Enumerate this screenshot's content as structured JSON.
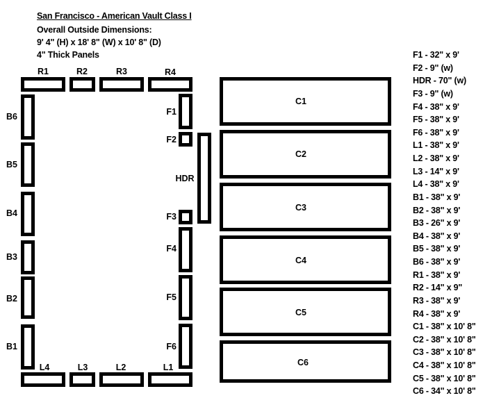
{
  "header": {
    "title": "San Francisco - American Vault Class I",
    "line2": "Overall Outside Dimensions:",
    "line3": "9' 4\" (H) x 18' 8\" (W) x 10' 8\" (D)",
    "line4": "4\" Thick Panels"
  },
  "panels": {
    "R1": "R1",
    "R2": "R2",
    "R3": "R3",
    "R4": "R4",
    "B1": "B1",
    "B2": "B2",
    "B3": "B3",
    "B4": "B4",
    "B5": "B5",
    "B6": "B6",
    "F1": "F1",
    "F2": "F2",
    "F3": "F3",
    "F4": "F4",
    "F5": "F5",
    "F6": "F6",
    "HDR": "HDR",
    "L1": "L1",
    "L2": "L2",
    "L3": "L3",
    "L4": "L4",
    "C1": "C1",
    "C2": "C2",
    "C3": "C3",
    "C4": "C4",
    "C5": "C5",
    "C6": "C6"
  },
  "dimensions": [
    "F1 - 32\" x 9'",
    "F2 - 9\" (w)",
    "HDR - 70\" (w)",
    "F3 - 9\" (w)",
    "F4 - 38\" x 9'",
    "F5 - 38\" x 9'",
    "F6 - 38\" x 9'",
    "L1 - 38\" x 9'",
    "L2 - 38\" x 9'",
    "L3 - 14\" x 9'",
    "L4 - 38\" x 9'",
    "B1 - 38\" x 9'",
    "B2 - 38\" x 9'",
    "B3 - 26\" x 9'",
    "B4 - 38\" x 9'",
    "B5 - 38\" x 9'",
    "B6 - 38\" x 9'",
    "R1 - 38\" x 9'",
    "R2 - 14\" x 9\"",
    "R3 - 38\" x 9'",
    "R4 - 38\" x 9'",
    "C1 - 38\" x 10' 8\"",
    "C2 - 38\" x 10' 8\"",
    "C3 - 38\" x 10' 8\"",
    "C4 - 38\" x 10' 8\"",
    "C5 - 38\" x 10' 8\"",
    "C6 - 34\" x 10' 8\""
  ]
}
